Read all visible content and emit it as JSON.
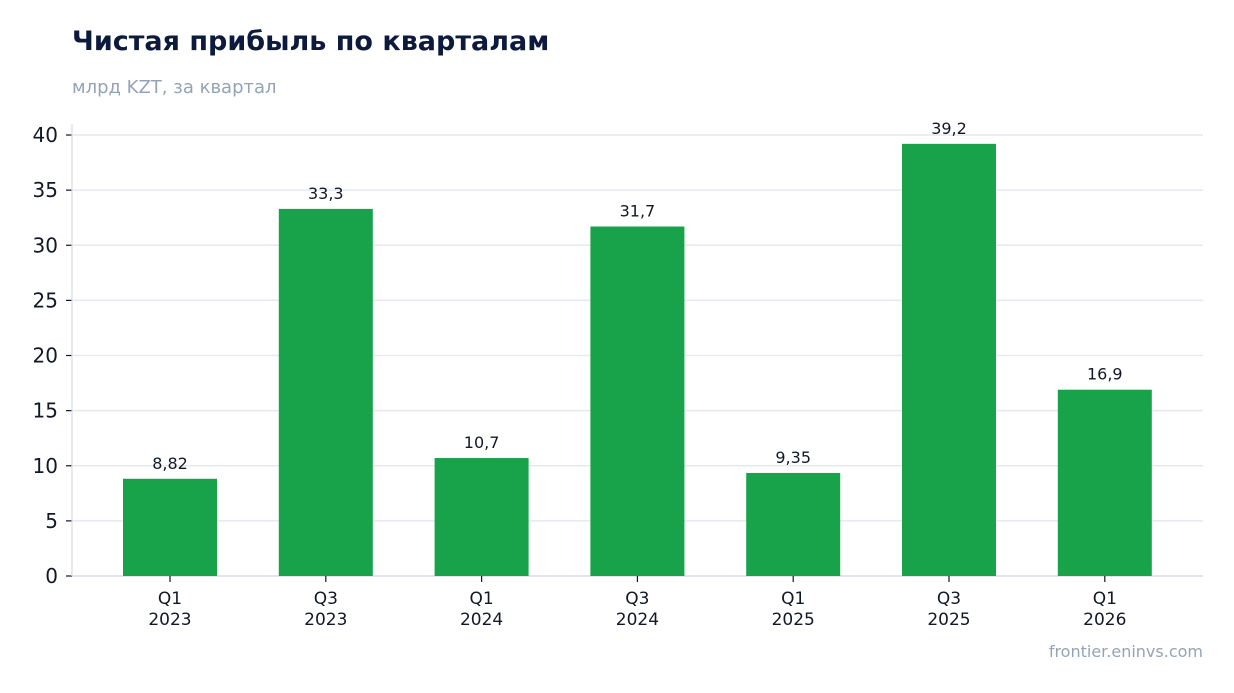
{
  "header": {
    "title": "Чистая прибыль по кварталам",
    "subtitle": "млрд KZT, за квартал"
  },
  "footer": {
    "source": "frontier.eninvs.com"
  },
  "chart_data": {
    "type": "bar",
    "title": "Чистая прибыль по кварталам",
    "subtitle": "млрд KZT, за квартал",
    "categories": [
      [
        "Q1",
        "2023"
      ],
      [
        "Q3",
        "2023"
      ],
      [
        "Q1",
        "2024"
      ],
      [
        "Q3",
        "2024"
      ],
      [
        "Q1",
        "2025"
      ],
      [
        "Q3",
        "2025"
      ],
      [
        "Q1",
        "2026"
      ]
    ],
    "values": [
      8.82,
      33.3,
      10.7,
      31.7,
      9.35,
      39.2,
      16.9
    ],
    "value_labels": [
      "8,82",
      "33,3",
      "10,7",
      "31,7",
      "9,35",
      "39,2",
      "16,9"
    ],
    "ylim": [
      0,
      41
    ],
    "yticks": [
      0,
      5,
      10,
      15,
      20,
      25,
      30,
      35,
      40
    ],
    "grid": true,
    "legend": "none",
    "bar_color": "#18a34a",
    "grid_color": "#e5e9f0"
  }
}
